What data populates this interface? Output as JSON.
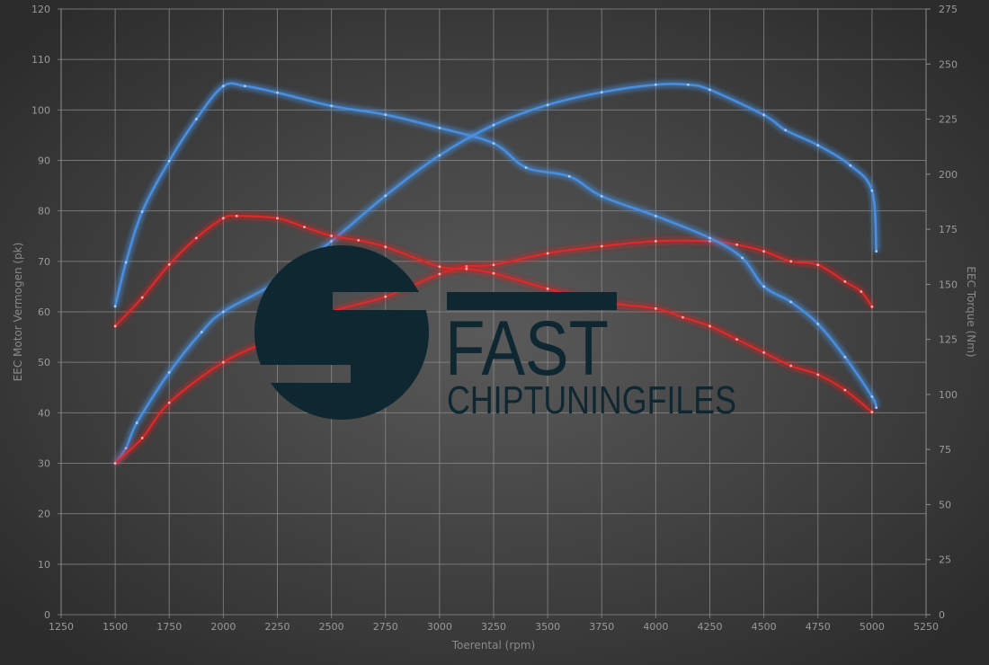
{
  "chart_data": {
    "type": "line",
    "title": "",
    "xlabel": "Toerental (rpm)",
    "ylabel_left": "EEC Motor Vermogen (pk)",
    "ylabel_right": "EEC Torque (Nm)",
    "xlim": [
      1250,
      5250
    ],
    "ylim_left": [
      0,
      120
    ],
    "ylim_right": [
      0,
      275
    ],
    "x_ticks": [
      1250,
      1500,
      1750,
      2000,
      2250,
      2500,
      2750,
      3000,
      3250,
      3500,
      3750,
      4000,
      4250,
      4500,
      4750,
      5000,
      5250
    ],
    "y_ticks_left": [
      0,
      10,
      20,
      30,
      40,
      50,
      60,
      70,
      80,
      90,
      100,
      110,
      120
    ],
    "y_ticks_right": [
      0,
      25,
      50,
      75,
      100,
      125,
      150,
      175,
      200,
      225,
      250,
      275
    ],
    "grid": true,
    "legend": "none",
    "series": [
      {
        "axis": "left",
        "color": "#4a8fe0",
        "x": [
          1500,
          1550,
          1600,
          1750,
          1900,
          2000,
          2250,
          2500,
          2750,
          3000,
          3250,
          3500,
          3750,
          4000,
          4150,
          4250,
          4500,
          4600,
          4750,
          4900,
          5000,
          5020
        ],
        "values": [
          30,
          33,
          38,
          48,
          56,
          60,
          66,
          74,
          83,
          91,
          97,
          101,
          103.5,
          105,
          105,
          104,
          99,
          96,
          93,
          89,
          84,
          72
        ]
      },
      {
        "axis": "left",
        "color": "#e02a2a",
        "x": [
          1500,
          1625,
          1750,
          2000,
          2250,
          2500,
          2750,
          3000,
          3125,
          3250,
          3500,
          3750,
          4000,
          4250,
          4375,
          4500,
          4625,
          4750,
          4875,
          4950,
          5000
        ],
        "values": [
          30,
          35,
          42,
          50,
          55,
          60,
          63,
          67.5,
          69,
          69.3,
          71.6,
          73,
          74,
          74,
          73.3,
          72,
          70,
          69.3,
          66,
          64,
          61
        ]
      },
      {
        "axis": "right",
        "color": "#4a8fe0",
        "x": [
          1500,
          1550,
          1625,
          1750,
          1875,
          2000,
          2100,
          2250,
          2500,
          2750,
          3000,
          3250,
          3400,
          3600,
          3750,
          4000,
          4250,
          4400,
          4500,
          4625,
          4750,
          4875,
          5000,
          5020
        ],
        "values": [
          140,
          160,
          183,
          206,
          225,
          240,
          240,
          237,
          231,
          227,
          221,
          214,
          203,
          199,
          190,
          181,
          171,
          162,
          149,
          142,
          132,
          117,
          99,
          94
        ]
      },
      {
        "axis": "right",
        "color": "#e02a2a",
        "x": [
          1500,
          1625,
          1750,
          1875,
          2000,
          2062,
          2250,
          2375,
          2500,
          2625,
          2750,
          3000,
          3125,
          3250,
          3500,
          3750,
          4000,
          4125,
          4250,
          4375,
          4500,
          4625,
          4750,
          4875,
          5000
        ],
        "values": [
          131,
          144,
          159,
          171,
          180,
          181,
          180,
          176,
          172,
          170,
          167,
          158,
          157,
          155,
          148,
          142,
          139,
          135,
          131,
          125,
          119,
          113,
          109,
          102,
          92
        ]
      }
    ]
  },
  "logo": {
    "text_main": "FAST",
    "text_sub": "CHIPTUNINGFILES",
    "color": "#0e2731"
  },
  "colors": {
    "grid": "#8c8c8c",
    "bg_center": "#5a5a5a",
    "bg_edge": "#2c2c2c"
  }
}
